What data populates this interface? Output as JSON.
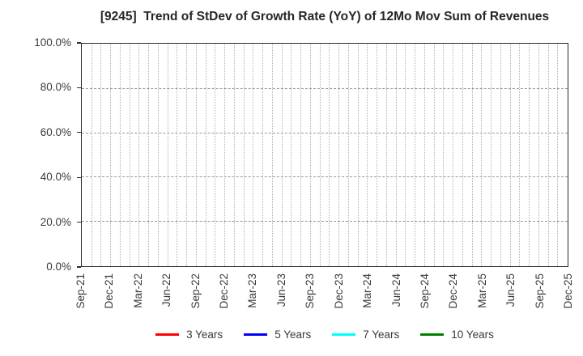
{
  "chart_data": {
    "type": "line",
    "title": "[9245]  Trend of StDev of Growth Rate (YoY) of 12Mo Mov Sum of Revenues",
    "xlabel": "",
    "ylabel": "",
    "x_ticks": [
      "Sep-21",
      "Dec-21",
      "Mar-22",
      "Jun-22",
      "Sep-22",
      "Dec-22",
      "Mar-23",
      "Jun-23",
      "Sep-23",
      "Dec-23",
      "Mar-24",
      "Jun-24",
      "Sep-24",
      "Dec-24",
      "Mar-25",
      "Jun-25",
      "Sep-25",
      "Dec-25"
    ],
    "x_total_months": 51,
    "x_tick_interval_months": 3,
    "x_minor_gridline_interval_months": 1,
    "y_ticks": [
      {
        "label": "0.0%",
        "value": 0
      },
      {
        "label": "20.0%",
        "value": 20
      },
      {
        "label": "40.0%",
        "value": 40
      },
      {
        "label": "60.0%",
        "value": 60
      },
      {
        "label": "80.0%",
        "value": 80
      },
      {
        "label": "100.0%",
        "value": 100
      }
    ],
    "ylim": [
      0,
      100
    ],
    "y_gridlines": [
      20,
      40,
      60,
      80
    ],
    "grid": true,
    "legend_position": "bottom",
    "series": [
      {
        "name": "3 Years",
        "color": "#ff0000",
        "values": []
      },
      {
        "name": "5 Years",
        "color": "#0000ff",
        "values": []
      },
      {
        "name": "7 Years",
        "color": "#00ffff",
        "values": []
      },
      {
        "name": "10 Years",
        "color": "#008000",
        "values": []
      }
    ]
  }
}
